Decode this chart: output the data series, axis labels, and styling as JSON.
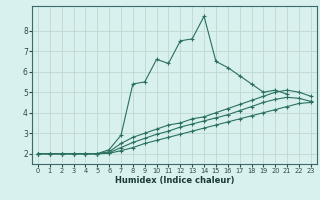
{
  "xlabel": "Humidex (Indice chaleur)",
  "bg_color": "#d8f0ee",
  "grid_color": "#c0d8d0",
  "line_color": "#2a7060",
  "xlim": [
    -0.5,
    23.5
  ],
  "ylim": [
    1.5,
    9.2
  ],
  "xticks": [
    0,
    1,
    2,
    3,
    4,
    5,
    6,
    7,
    8,
    9,
    10,
    11,
    12,
    13,
    14,
    15,
    16,
    17,
    18,
    19,
    20,
    21,
    22,
    23
  ],
  "yticks": [
    2,
    3,
    4,
    5,
    6,
    7,
    8
  ],
  "lines": [
    {
      "x": [
        0,
        1,
        2,
        3,
        4,
        5,
        6,
        7,
        8,
        9,
        10,
        11,
        12,
        13,
        14,
        15,
        16,
        17,
        18,
        19,
        20,
        21
      ],
      "y": [
        2,
        2,
        2,
        2,
        2,
        2,
        2.2,
        2.9,
        5.4,
        5.5,
        6.6,
        6.4,
        7.5,
        7.6,
        8.7,
        6.5,
        6.2,
        5.8,
        5.4,
        5.0,
        5.1,
        4.9
      ]
    },
    {
      "x": [
        0,
        1,
        2,
        3,
        4,
        5,
        6,
        7,
        8,
        9,
        10,
        11,
        12,
        13,
        14,
        15,
        16,
        17,
        18,
        19,
        20,
        21,
        22,
        23
      ],
      "y": [
        2,
        2,
        2,
        2,
        2,
        2,
        2.1,
        2.5,
        2.8,
        3.0,
        3.2,
        3.4,
        3.5,
        3.7,
        3.8,
        4.0,
        4.2,
        4.4,
        4.6,
        4.8,
        5.0,
        5.1,
        5.0,
        4.8
      ]
    },
    {
      "x": [
        0,
        1,
        2,
        3,
        4,
        5,
        6,
        7,
        8,
        9,
        10,
        11,
        12,
        13,
        14,
        15,
        16,
        17,
        18,
        19,
        20,
        21,
        22,
        23
      ],
      "y": [
        2,
        2,
        2,
        2,
        2,
        2,
        2.05,
        2.3,
        2.55,
        2.75,
        2.95,
        3.1,
        3.3,
        3.45,
        3.6,
        3.75,
        3.9,
        4.1,
        4.3,
        4.5,
        4.65,
        4.75,
        4.7,
        4.55
      ]
    },
    {
      "x": [
        0,
        1,
        2,
        3,
        4,
        5,
        6,
        7,
        8,
        9,
        10,
        11,
        12,
        13,
        14,
        15,
        16,
        17,
        18,
        19,
        20,
        21,
        22,
        23
      ],
      "y": [
        2,
        2,
        2,
        2,
        2,
        2,
        2.02,
        2.15,
        2.3,
        2.5,
        2.65,
        2.8,
        2.95,
        3.1,
        3.25,
        3.4,
        3.55,
        3.7,
        3.85,
        4.0,
        4.15,
        4.3,
        4.45,
        4.5
      ]
    }
  ]
}
